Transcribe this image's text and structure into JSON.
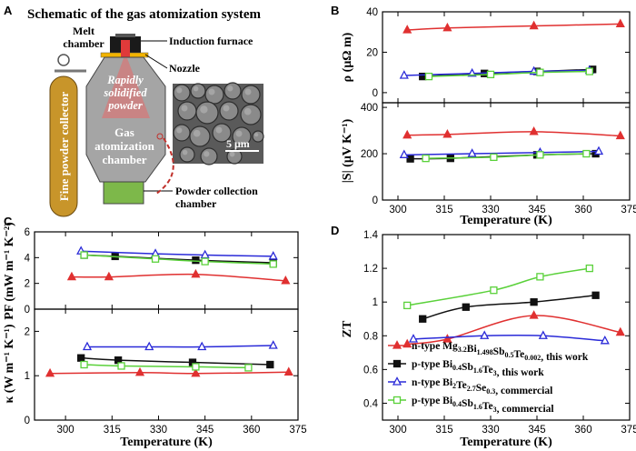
{
  "panel_a": {
    "letter": "A",
    "title": "Schematic of the gas atomization system",
    "labels": {
      "melt_chamber": "Melt\nchamber",
      "induction_furnace": "Induction furnace",
      "nozzle": "Nozzle",
      "rapidly_solidified_powder": "Rapidly\nsolidified\npowder",
      "fine_powder_collector": "Fine powder collector",
      "gas_atomization_chamber": "Gas\natomization\nchamber",
      "powder_collection_chamber": "Powder collection\nchamber",
      "scale_bar": "5 μm"
    },
    "colors": {
      "collector": "#c8952a",
      "chamber": "#a9a9a9",
      "collection": "#7db84a",
      "spray": "#e03a3a",
      "link": "#c0302b"
    }
  },
  "series_legend": [
    {
      "label_parts": [
        [
          "n-type Mg",
          ""
        ],
        [
          "3.2",
          "sub"
        ],
        [
          "Bi",
          ""
        ],
        [
          "1.498",
          "sub"
        ],
        [
          "Sb",
          ""
        ],
        [
          "0.5",
          "sub"
        ],
        [
          "Te",
          ""
        ],
        [
          "0.002",
          "sub"
        ],
        [
          ", this work",
          ""
        ]
      ],
      "color": "#e03030",
      "marker": "triangle",
      "fill": true
    },
    {
      "label_parts": [
        [
          "p-type Bi",
          ""
        ],
        [
          "0.4",
          "sub"
        ],
        [
          "Sb",
          ""
        ],
        [
          "1.6",
          "sub"
        ],
        [
          "Te",
          ""
        ],
        [
          "3",
          "sub"
        ],
        [
          ", this work",
          ""
        ]
      ],
      "color": "#111111",
      "marker": "square",
      "fill": true
    },
    {
      "label_parts": [
        [
          "n-type Bi",
          ""
        ],
        [
          "2",
          "sub"
        ],
        [
          "Te",
          ""
        ],
        [
          "2.7",
          "sub"
        ],
        [
          "Se",
          ""
        ],
        [
          "0.3",
          "sub"
        ],
        [
          ", commercial",
          ""
        ]
      ],
      "color": "#2a2ad8",
      "marker": "triangle",
      "fill": false
    },
    {
      "label_parts": [
        [
          "p-type Bi",
          ""
        ],
        [
          "0.4",
          "sub"
        ],
        [
          "Sb",
          ""
        ],
        [
          "1.6",
          "sub"
        ],
        [
          "Te",
          ""
        ],
        [
          "3",
          "sub"
        ],
        [
          ", commercial",
          ""
        ]
      ],
      "color": "#5ad13a",
      "marker": "square",
      "fill": false
    }
  ],
  "chart_data": [
    {
      "panel": "B",
      "type": "line",
      "xlabel": "Temperature (K)",
      "xlim": [
        295,
        375
      ],
      "xticks": [
        300,
        315,
        330,
        345,
        360,
        375
      ],
      "subplots": [
        {
          "ylabel": "ρ  (μΩ m)",
          "ylim": [
            -5,
            40
          ],
          "yticks": [
            0,
            20,
            40
          ],
          "series": [
            {
              "x": [
                303,
                316,
                344,
                372
              ],
              "y": [
                31,
                32,
                33,
                34
              ]
            },
            {
              "x": [
                308,
                328,
                345,
                363
              ],
              "y": [
                8,
                9.5,
                10.5,
                11.5
              ]
            },
            {
              "x": [
                302,
                324,
                344,
                362
              ],
              "y": [
                8.5,
                9.5,
                10.5,
                11
              ]
            },
            {
              "x": [
                310,
                330,
                346,
                362
              ],
              "y": [
                8,
                9,
                10,
                10.5
              ]
            }
          ]
        },
        {
          "ylabel": "|S| (μV K⁻¹)",
          "ylim": [
            0,
            420
          ],
          "yticks": [
            0,
            200,
            400
          ],
          "series": [
            {
              "x": [
                303,
                316,
                344,
                372
              ],
              "y": [
                280,
                283,
                295,
                277
              ]
            },
            {
              "x": [
                304,
                317,
                345,
                364
              ],
              "y": [
                178,
                180,
                195,
                200
              ]
            },
            {
              "x": [
                302,
                324,
                346,
                365
              ],
              "y": [
                195,
                200,
                205,
                210
              ]
            },
            {
              "x": [
                309,
                331,
                346,
                361
              ],
              "y": [
                180,
                185,
                195,
                200
              ]
            }
          ]
        }
      ]
    },
    {
      "panel": "C",
      "type": "line",
      "xlabel": "Temperature (K)",
      "xlim": [
        290,
        375
      ],
      "xticks": [
        300,
        315,
        330,
        345,
        360,
        375
      ],
      "subplots": [
        {
          "ylabel": "PF (mW m⁻¹ K⁻²)",
          "ylim": [
            0,
            6
          ],
          "yticks": [
            0,
            2,
            4,
            6
          ],
          "series": [
            {
              "x": [
                302,
                314,
                342,
                371
              ],
              "y": [
                2.5,
                2.5,
                2.7,
                2.2
              ]
            },
            {
              "x": [
                306,
                316,
                342,
                367
              ],
              "y": [
                4.2,
                4.1,
                3.8,
                3.6
              ]
            },
            {
              "x": [
                305,
                329,
                345,
                367
              ],
              "y": [
                4.5,
                4.3,
                4.2,
                4.1
              ]
            },
            {
              "x": [
                306,
                329,
                345,
                367
              ],
              "y": [
                4.2,
                3.9,
                3.7,
                3.5
              ]
            }
          ]
        },
        {
          "ylabel": "κ (W m⁻¹ K⁻¹)",
          "ylim": [
            0,
            2.5
          ],
          "yticks": [
            0,
            1,
            2
          ],
          "series": [
            {
              "x": [
                295,
                324,
                342,
                372
              ],
              "y": [
                1.05,
                1.07,
                1.05,
                1.08
              ]
            },
            {
              "x": [
                305,
                317,
                341,
                366
              ],
              "y": [
                1.4,
                1.35,
                1.3,
                1.25
              ]
            },
            {
              "x": [
                307,
                327,
                344,
                367
              ],
              "y": [
                1.65,
                1.65,
                1.65,
                1.68
              ]
            },
            {
              "x": [
                306,
                318,
                342,
                359
              ],
              "y": [
                1.25,
                1.22,
                1.2,
                1.18
              ]
            }
          ]
        }
      ]
    },
    {
      "panel": "D",
      "type": "line",
      "xlabel": "Temperature (K)",
      "ylabel": "ZT",
      "xlim": [
        295,
        375
      ],
      "xticks": [
        300,
        315,
        330,
        345,
        360,
        375
      ],
      "ylim": [
        0.3,
        1.4
      ],
      "yticks": [
        0.4,
        0.6,
        0.8,
        1.0,
        1.2,
        1.4
      ],
      "series": [
        {
          "x": [
            303,
            316,
            344,
            372
          ],
          "y": [
            0.75,
            0.78,
            0.92,
            0.82
          ]
        },
        {
          "x": [
            308,
            322,
            344,
            364
          ],
          "y": [
            0.9,
            0.97,
            1.0,
            1.04
          ]
        },
        {
          "x": [
            305,
            328,
            347,
            367
          ],
          "y": [
            0.78,
            0.8,
            0.8,
            0.77
          ]
        },
        {
          "x": [
            303,
            331,
            346,
            362
          ],
          "y": [
            0.98,
            1.07,
            1.15,
            1.2
          ]
        }
      ]
    }
  ]
}
